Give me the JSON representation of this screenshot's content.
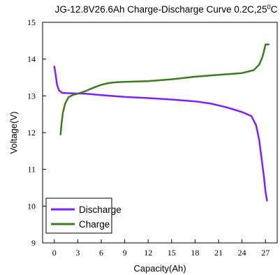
{
  "chart_data": {
    "type": "line",
    "title": "JG-12.8V26.6Ah Charge-Discharge Curve  0.2C,25",
    "title_sup": "0",
    "title_suffix": "C",
    "xlabel": "Capacity(Ah)",
    "ylabel": "Voltage(V)",
    "xlim": [
      -1.5,
      28.5
    ],
    "ylim": [
      9,
      15
    ],
    "xticks": [
      0,
      3,
      6,
      9,
      12,
      15,
      18,
      21,
      24,
      27
    ],
    "yticks": [
      9,
      10,
      11,
      12,
      13,
      14,
      15
    ],
    "grid": false,
    "legend_position": "bottom-left",
    "series": [
      {
        "name": "Discharge",
        "color": "#7f1fff",
        "x": [
          0,
          0.15,
          0.35,
          0.6,
          1,
          2,
          4,
          6,
          9,
          12,
          15,
          18,
          20,
          22,
          24,
          25.2,
          25.8,
          26.2,
          26.5,
          26.8,
          27,
          27.2
        ],
        "y": [
          13.8,
          13.6,
          13.3,
          13.15,
          13.08,
          13.07,
          13.06,
          13.02,
          12.97,
          12.94,
          12.9,
          12.85,
          12.79,
          12.69,
          12.56,
          12.45,
          12.2,
          11.8,
          11.3,
          10.8,
          10.4,
          10.15
        ]
      },
      {
        "name": "Charge",
        "color": "#3a7d1e",
        "x": [
          0.8,
          0.9,
          1.1,
          1.4,
          1.8,
          2.3,
          3,
          4,
          5,
          6,
          7,
          8,
          9,
          12,
          15,
          18,
          21,
          24,
          25.5,
          26.2,
          26.6,
          26.85,
          27,
          27.2,
          27.4
        ],
        "y": [
          11.95,
          12.2,
          12.55,
          12.8,
          12.96,
          13.02,
          13.06,
          13.13,
          13.22,
          13.3,
          13.35,
          13.37,
          13.38,
          13.4,
          13.45,
          13.52,
          13.57,
          13.62,
          13.7,
          13.85,
          14.05,
          14.25,
          14.4,
          14.4,
          14.4
        ]
      }
    ]
  }
}
